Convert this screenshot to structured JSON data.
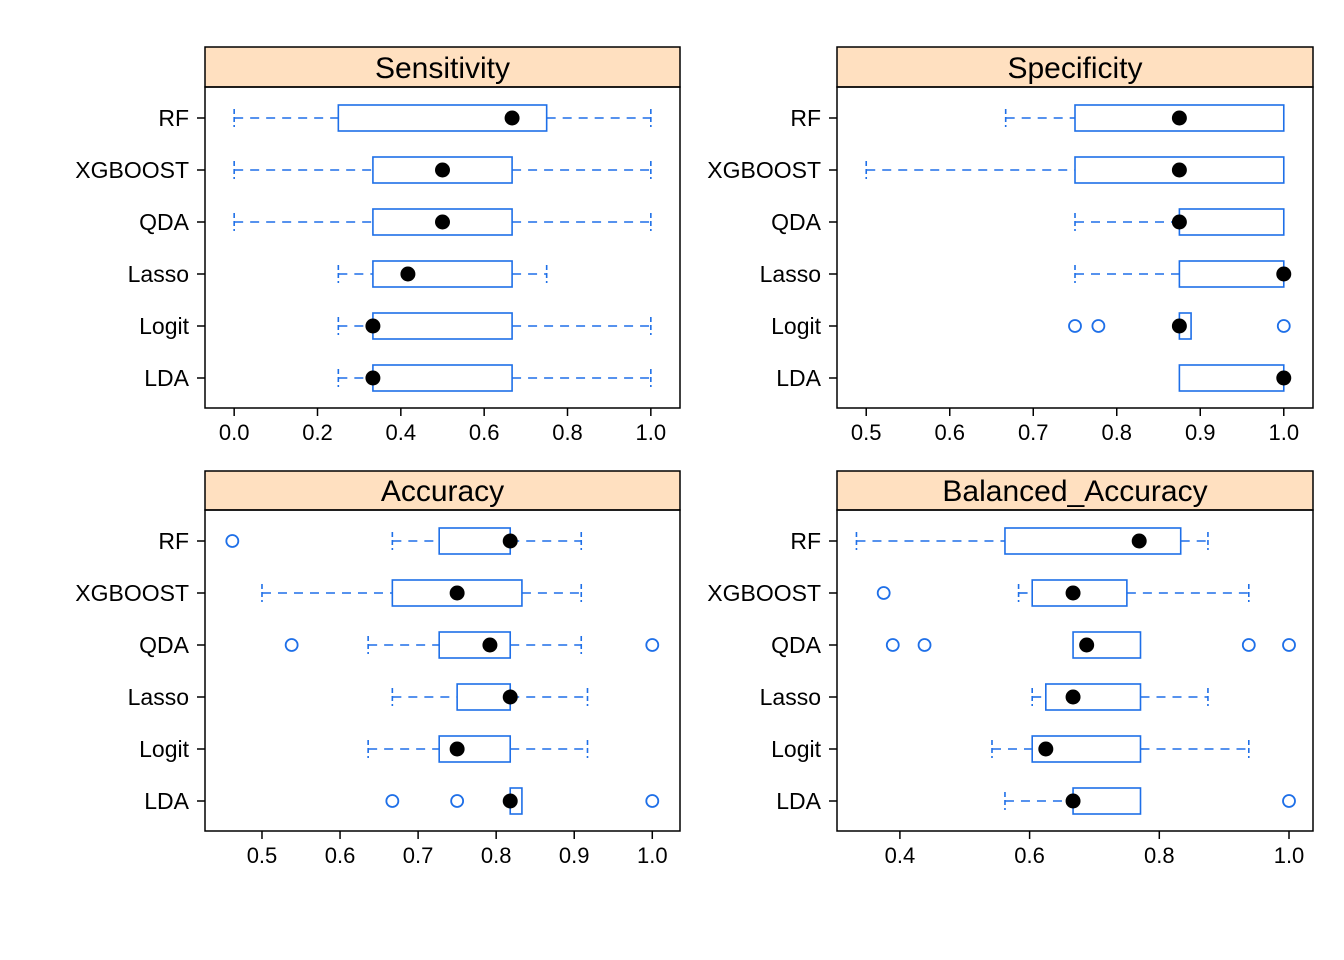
{
  "colors": {
    "strip": "#FFE0C0",
    "box": "#1E6FE8",
    "median": "#000000",
    "frame": "#000000"
  },
  "chart_data": [
    {
      "type": "boxplot",
      "title": "Sensitivity",
      "categories": [
        "RF",
        "XGBOOST",
        "QDA",
        "Lasso",
        "Logit",
        "LDA"
      ],
      "xlim": [
        -0.07,
        1.07
      ],
      "ticks": [
        0.0,
        0.2,
        0.4,
        0.6,
        0.8,
        1.0
      ],
      "tick_labels": [
        "0.0",
        "0.2",
        "0.4",
        "0.6",
        "0.8",
        "1.0"
      ],
      "boxes": [
        {
          "whisker_low": 0.0,
          "q1": 0.25,
          "median": 0.667,
          "q3": 0.75,
          "whisker_high": 1.0,
          "outliers": []
        },
        {
          "whisker_low": 0.0,
          "q1": 0.333,
          "median": 0.5,
          "q3": 0.667,
          "whisker_high": 1.0,
          "outliers": []
        },
        {
          "whisker_low": 0.0,
          "q1": 0.333,
          "median": 0.5,
          "q3": 0.667,
          "whisker_high": 1.0,
          "outliers": []
        },
        {
          "whisker_low": 0.25,
          "q1": 0.333,
          "median": 0.417,
          "q3": 0.667,
          "whisker_high": 0.75,
          "outliers": []
        },
        {
          "whisker_low": 0.25,
          "q1": 0.333,
          "median": 0.333,
          "q3": 0.667,
          "whisker_high": 1.0,
          "outliers": []
        },
        {
          "whisker_low": 0.25,
          "q1": 0.333,
          "median": 0.333,
          "q3": 0.667,
          "whisker_high": 1.0,
          "outliers": []
        }
      ]
    },
    {
      "type": "boxplot",
      "title": "Specificity",
      "categories": [
        "RF",
        "XGBOOST",
        "QDA",
        "Lasso",
        "Logit",
        "LDA"
      ],
      "xlim": [
        0.465,
        1.035
      ],
      "ticks": [
        0.5,
        0.6,
        0.7,
        0.8,
        0.9,
        1.0
      ],
      "tick_labels": [
        "0.5",
        "0.6",
        "0.7",
        "0.8",
        "0.9",
        "1.0"
      ],
      "boxes": [
        {
          "whisker_low": 0.667,
          "q1": 0.75,
          "median": 0.875,
          "q3": 1.0,
          "whisker_high": 1.0,
          "outliers": []
        },
        {
          "whisker_low": 0.5,
          "q1": 0.75,
          "median": 0.875,
          "q3": 1.0,
          "whisker_high": 1.0,
          "outliers": []
        },
        {
          "whisker_low": 0.75,
          "q1": 0.875,
          "median": 0.875,
          "q3": 1.0,
          "whisker_high": 1.0,
          "outliers": []
        },
        {
          "whisker_low": 0.75,
          "q1": 0.875,
          "median": 1.0,
          "q3": 1.0,
          "whisker_high": 1.0,
          "outliers": []
        },
        {
          "whisker_low": 0.875,
          "q1": 0.875,
          "median": 0.875,
          "q3": 0.889,
          "whisker_high": 0.889,
          "outliers": [
            0.75,
            0.778,
            1.0
          ]
        },
        {
          "whisker_low": 0.875,
          "q1": 0.875,
          "median": 1.0,
          "q3": 1.0,
          "whisker_high": 1.0,
          "outliers": []
        }
      ]
    },
    {
      "type": "boxplot",
      "title": "Accuracy",
      "categories": [
        "RF",
        "XGBOOST",
        "QDA",
        "Lasso",
        "Logit",
        "LDA"
      ],
      "xlim": [
        0.427,
        1.0355
      ],
      "ticks": [
        0.5,
        0.6,
        0.7,
        0.8,
        0.9,
        1.0
      ],
      "tick_labels": [
        "0.5",
        "0.6",
        "0.7",
        "0.8",
        "0.9",
        "1.0"
      ],
      "boxes": [
        {
          "whisker_low": 0.667,
          "q1": 0.727,
          "median": 0.818,
          "q3": 0.818,
          "whisker_high": 0.909,
          "outliers": [
            0.462
          ]
        },
        {
          "whisker_low": 0.5,
          "q1": 0.667,
          "median": 0.75,
          "q3": 0.833,
          "whisker_high": 0.909,
          "outliers": []
        },
        {
          "whisker_low": 0.636,
          "q1": 0.727,
          "median": 0.792,
          "q3": 0.818,
          "whisker_high": 0.909,
          "outliers": [
            0.538,
            1.0
          ]
        },
        {
          "whisker_low": 0.667,
          "q1": 0.75,
          "median": 0.818,
          "q3": 0.818,
          "whisker_high": 0.917,
          "outliers": []
        },
        {
          "whisker_low": 0.636,
          "q1": 0.727,
          "median": 0.75,
          "q3": 0.818,
          "whisker_high": 0.917,
          "outliers": []
        },
        {
          "whisker_low": 0.818,
          "q1": 0.818,
          "median": 0.818,
          "q3": 0.833,
          "whisker_high": 0.833,
          "outliers": [
            0.667,
            0.75,
            1.0
          ]
        }
      ]
    },
    {
      "type": "boxplot",
      "title": "Balanced_Accuracy",
      "categories": [
        "RF",
        "XGBOOST",
        "QDA",
        "Lasso",
        "Logit",
        "LDA"
      ],
      "xlim": [
        0.303,
        1.037
      ],
      "ticks": [
        0.4,
        0.6,
        0.8,
        1.0
      ],
      "tick_labels": [
        "0.4",
        "0.6",
        "0.8",
        "1.0"
      ],
      "boxes": [
        {
          "whisker_low": 0.333,
          "q1": 0.562,
          "median": 0.769,
          "q3": 0.833,
          "whisker_high": 0.875,
          "outliers": []
        },
        {
          "whisker_low": 0.583,
          "q1": 0.604,
          "median": 0.667,
          "q3": 0.75,
          "whisker_high": 0.938,
          "outliers": [
            0.375
          ]
        },
        {
          "whisker_low": 0.667,
          "q1": 0.667,
          "median": 0.688,
          "q3": 0.771,
          "whisker_high": 0.771,
          "outliers": [
            0.389,
            0.438,
            0.938,
            1.0
          ]
        },
        {
          "whisker_low": 0.604,
          "q1": 0.625,
          "median": 0.667,
          "q3": 0.771,
          "whisker_high": 0.875,
          "outliers": []
        },
        {
          "whisker_low": 0.542,
          "q1": 0.604,
          "median": 0.625,
          "q3": 0.771,
          "whisker_high": 0.938,
          "outliers": []
        },
        {
          "whisker_low": 0.562,
          "q1": 0.667,
          "median": 0.667,
          "q3": 0.771,
          "whisker_high": 0.771,
          "outliers": [
            1.0
          ]
        }
      ]
    }
  ]
}
